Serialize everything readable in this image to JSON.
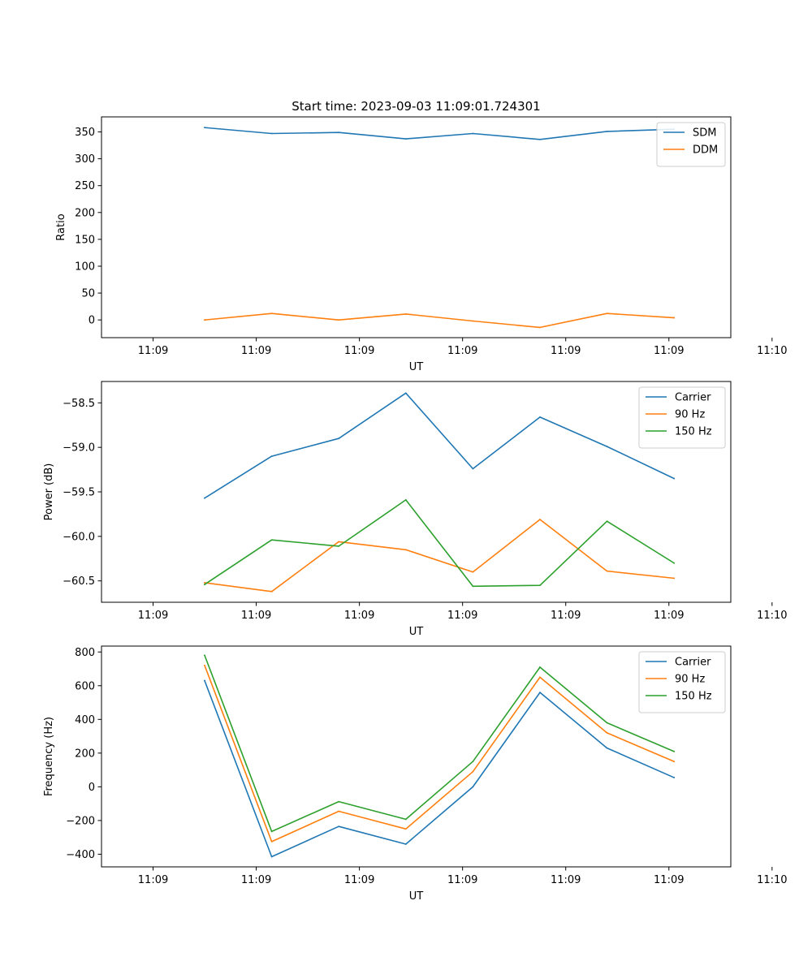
{
  "figure_title": "Start time: 2023-09-03 11:09:01.724301",
  "chart_data": [
    {
      "type": "line",
      "title": "Start time: 2023-09-03 11:09:01.724301",
      "xlabel": "UT",
      "ylabel": "Ratio",
      "xlim": [
        -0.5,
        5.6
      ],
      "ylim": [
        -33,
        378
      ],
      "x_ticks": [
        0,
        1,
        2,
        3,
        4,
        5,
        6
      ],
      "x_tick_labels": [
        "11:09",
        "11:09",
        "11:09",
        "11:09",
        "11:09",
        "11:09",
        "11:10"
      ],
      "y_ticks": [
        0,
        50,
        100,
        150,
        200,
        250,
        300,
        350
      ],
      "y_tick_labels": [
        "0",
        "50",
        "100",
        "150",
        "200",
        "250",
        "300",
        "350"
      ],
      "legend_position": "top-right",
      "x": [
        0.5,
        1.15,
        1.8,
        2.45,
        3.1,
        3.75,
        4.4,
        5.05
      ],
      "series": [
        {
          "name": "SDM",
          "color": "#1f77b4",
          "values": [
            358,
            347,
            349,
            337,
            347,
            336,
            351,
            355
          ]
        },
        {
          "name": "DDM",
          "color": "#ff7f0e",
          "values": [
            0,
            12,
            0,
            11,
            -2,
            -14,
            12,
            4
          ]
        }
      ]
    },
    {
      "type": "line",
      "xlabel": "UT",
      "ylabel": "Power (dB)",
      "xlim": [
        -0.5,
        5.6
      ],
      "ylim": [
        -60.74,
        -58.26
      ],
      "x_ticks": [
        0,
        1,
        2,
        3,
        4,
        5,
        6
      ],
      "x_tick_labels": [
        "11:09",
        "11:09",
        "11:09",
        "11:09",
        "11:09",
        "11:09",
        "11:10"
      ],
      "y_ticks": [
        -60.5,
        -60.0,
        -59.5,
        -59.0,
        -58.5
      ],
      "y_tick_labels": [
        "−60.5",
        "−60.0",
        "−59.5",
        "−59.0",
        "−58.5"
      ],
      "legend_position": "top-right",
      "x": [
        0.5,
        1.15,
        1.8,
        2.45,
        3.1,
        3.75,
        4.4,
        5.05
      ],
      "series": [
        {
          "name": "Carrier",
          "color": "#1f77b4",
          "values": [
            -59.57,
            -59.1,
            -58.9,
            -58.39,
            -59.24,
            -58.66,
            -58.99,
            -59.35
          ]
        },
        {
          "name": "90 Hz",
          "color": "#ff7f0e",
          "values": [
            -60.52,
            -60.62,
            -60.06,
            -60.15,
            -60.4,
            -59.81,
            -60.39,
            -60.47
          ]
        },
        {
          "name": "150 Hz",
          "color": "#2ca02c",
          "values": [
            -60.54,
            -60.04,
            -60.11,
            -59.59,
            -60.56,
            -60.55,
            -59.83,
            -60.3
          ]
        }
      ]
    },
    {
      "type": "line",
      "xlabel": "UT",
      "ylabel": "Frequency (Hz)",
      "xlim": [
        -0.5,
        5.6
      ],
      "ylim": [
        -475,
        835
      ],
      "x_ticks": [
        0,
        1,
        2,
        3,
        4,
        5,
        6
      ],
      "x_tick_labels": [
        "11:09",
        "11:09",
        "11:09",
        "11:09",
        "11:09",
        "11:09",
        "11:10"
      ],
      "y_ticks": [
        -400,
        -200,
        0,
        200,
        400,
        600,
        800
      ],
      "y_tick_labels": [
        "−400",
        "−200",
        "0",
        "200",
        "400",
        "600",
        "800"
      ],
      "legend_position": "top-right",
      "x": [
        0.5,
        1.15,
        1.8,
        2.45,
        3.1,
        3.75,
        4.4,
        5.05
      ],
      "series": [
        {
          "name": "Carrier",
          "color": "#1f77b4",
          "values": [
            630,
            -415,
            -235,
            -340,
            0,
            560,
            230,
            55
          ]
        },
        {
          "name": "90 Hz",
          "color": "#ff7f0e",
          "values": [
            720,
            -325,
            -145,
            -250,
            90,
            650,
            320,
            150
          ]
        },
        {
          "name": "150 Hz",
          "color": "#2ca02c",
          "values": [
            780,
            -265,
            -88,
            -193,
            150,
            710,
            380,
            210
          ]
        }
      ]
    }
  ]
}
